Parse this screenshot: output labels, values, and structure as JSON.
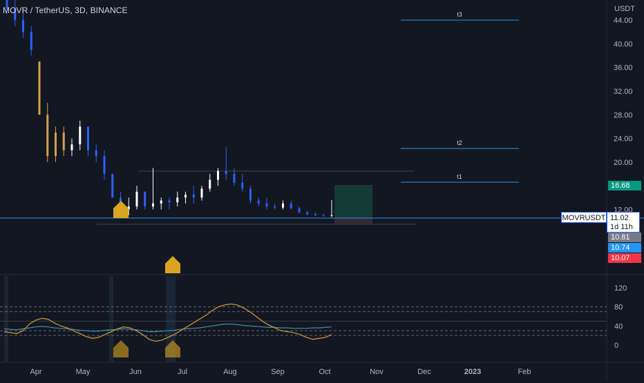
{
  "header": {
    "symbol": "MOVR / TetherUS, 3D, BINANCE"
  },
  "price_axis": {
    "unit": "USDT",
    "ticks": [
      "44.00",
      "40.00",
      "36.00",
      "32.00",
      "28.00",
      "24.00",
      "20.00",
      "12.00"
    ]
  },
  "oscillator_axis": {
    "ticks": [
      "120",
      "80",
      "40",
      "0"
    ]
  },
  "time_axis": {
    "labels": [
      "Apr",
      "May",
      "Jun",
      "Jul",
      "Aug",
      "Sep",
      "Oct",
      "Nov",
      "Dec",
      "2023",
      "Feb"
    ]
  },
  "targets": [
    {
      "label": "t3",
      "price": 44.0
    },
    {
      "label": "t2",
      "price": 22.3
    },
    {
      "label": "t1",
      "price": 16.6
    }
  ],
  "price_tags": [
    {
      "text": "16.68",
      "color": "#089981"
    },
    {
      "text": "10.81",
      "color": "#787b86"
    },
    {
      "text": "10.74",
      "color": "#2196f3"
    },
    {
      "text": "10.07",
      "color": "#f23645"
    }
  ],
  "symbol_tag": "MOVRUSDT",
  "last_price": {
    "price": "11.02",
    "countdown": "1d 11h"
  },
  "colors": {
    "background": "#131722",
    "candle_up": "#ffffff",
    "candle_down": "#2962ff",
    "candle_highlight": "#d4a24a",
    "signal": "#d9a520",
    "horizontal_line": "#2196f3",
    "long_box": "#163f3a"
  },
  "icons": [
    "up-arrow-signal-icon"
  ],
  "chart_data": {
    "type": "candlestick",
    "title": "MOVR / TetherUS, 3D, BINANCE",
    "ylabel": "USDT",
    "ylim": [
      9,
      50
    ],
    "x_labels": [
      "Apr",
      "May",
      "Jun",
      "Jul",
      "Aug",
      "Sep",
      "Oct",
      "Nov",
      "Dec",
      "2023",
      "Feb"
    ],
    "candles": [
      {
        "o": 48,
        "h": 50,
        "l": 45,
        "c": 46,
        "hl": false
      },
      {
        "o": 46,
        "h": 48,
        "l": 43,
        "c": 44,
        "hl": false
      },
      {
        "o": 44,
        "h": 46,
        "l": 41,
        "c": 42,
        "hl": false
      },
      {
        "o": 42,
        "h": 43,
        "l": 38,
        "c": 39,
        "hl": false
      },
      {
        "o": 37,
        "h": 37,
        "l": 28,
        "c": 28,
        "hl": true
      },
      {
        "o": 28,
        "h": 30,
        "l": 20,
        "c": 21,
        "hl": true
      },
      {
        "o": 21,
        "h": 26,
        "l": 20,
        "c": 25,
        "hl": true
      },
      {
        "o": 25,
        "h": 26,
        "l": 21,
        "c": 22,
        "hl": true
      },
      {
        "o": 22,
        "h": 24,
        "l": 21,
        "c": 23,
        "hl": false
      },
      {
        "o": 23,
        "h": 27,
        "l": 22,
        "c": 26,
        "hl": false
      },
      {
        "o": 26,
        "h": 26,
        "l": 21,
        "c": 22,
        "hl": false
      },
      {
        "o": 22,
        "h": 23,
        "l": 20,
        "c": 21,
        "hl": false
      },
      {
        "o": 21,
        "h": 22,
        "l": 17,
        "c": 18,
        "hl": false
      },
      {
        "o": 18,
        "h": 18,
        "l": 14,
        "c": 14,
        "hl": false
      },
      {
        "o": 14,
        "h": 15,
        "l": 11,
        "c": 12,
        "hl": false
      },
      {
        "o": 12,
        "h": 14,
        "l": 11,
        "c": 12.5,
        "hl": false
      },
      {
        "o": 12.5,
        "h": 16,
        "l": 12,
        "c": 15,
        "hl": false
      },
      {
        "o": 15,
        "h": 15,
        "l": 12,
        "c": 12.5,
        "hl": false
      },
      {
        "o": 12.5,
        "h": 19,
        "l": 12,
        "c": 13,
        "hl": false
      },
      {
        "o": 13,
        "h": 14,
        "l": 12,
        "c": 13.5,
        "hl": false
      },
      {
        "o": 13.5,
        "h": 14,
        "l": 12,
        "c": 13.2,
        "hl": false
      },
      {
        "o": 13.2,
        "h": 15,
        "l": 12.5,
        "c": 14,
        "hl": false
      },
      {
        "o": 14,
        "h": 15,
        "l": 13,
        "c": 14.5,
        "hl": false
      },
      {
        "o": 14.5,
        "h": 16,
        "l": 13,
        "c": 14,
        "hl": false
      },
      {
        "o": 14,
        "h": 16,
        "l": 13.5,
        "c": 15.5,
        "hl": false
      },
      {
        "o": 15.5,
        "h": 18,
        "l": 15,
        "c": 17,
        "hl": false
      },
      {
        "o": 17,
        "h": 19,
        "l": 16,
        "c": 18.5,
        "hl": false
      },
      {
        "o": 18.5,
        "h": 22.5,
        "l": 17,
        "c": 18,
        "hl": false
      },
      {
        "o": 18,
        "h": 19,
        "l": 16,
        "c": 16.5,
        "hl": false
      },
      {
        "o": 16.5,
        "h": 18,
        "l": 15,
        "c": 15.5,
        "hl": false
      },
      {
        "o": 15.5,
        "h": 16,
        "l": 13,
        "c": 13.5,
        "hl": false
      },
      {
        "o": 13.5,
        "h": 14,
        "l": 12.5,
        "c": 13,
        "hl": false
      },
      {
        "o": 13,
        "h": 14,
        "l": 12,
        "c": 12.5,
        "hl": false
      },
      {
        "o": 12.5,
        "h": 13,
        "l": 12,
        "c": 12.3,
        "hl": false
      },
      {
        "o": 12.3,
        "h": 13.5,
        "l": 12,
        "c": 13,
        "hl": false
      },
      {
        "o": 13,
        "h": 13.5,
        "l": 12,
        "c": 12.2,
        "hl": false
      },
      {
        "o": 12.2,
        "h": 12.5,
        "l": 11.3,
        "c": 11.5,
        "hl": false
      },
      {
        "o": 11.5,
        "h": 11.8,
        "l": 11.0,
        "c": 11.2,
        "hl": false
      },
      {
        "o": 11.2,
        "h": 11.5,
        "l": 10.9,
        "c": 11.0,
        "hl": false
      },
      {
        "o": 11.0,
        "h": 11.3,
        "l": 10.8,
        "c": 10.9,
        "hl": false
      },
      {
        "o": 10.9,
        "h": 13.6,
        "l": 10.7,
        "c": 11.02,
        "hl": false
      }
    ],
    "oscillator": {
      "ylim": [
        -10,
        130
      ],
      "ticks": [
        120,
        80,
        40,
        0
      ],
      "orange": [
        28,
        26,
        24,
        30,
        44,
        52,
        56,
        54,
        46,
        40,
        36,
        30,
        24,
        18,
        14,
        16,
        22,
        28,
        34,
        38,
        36,
        30,
        22,
        12,
        8,
        10,
        16,
        22,
        30,
        38,
        46,
        54,
        62,
        72,
        80,
        84,
        86,
        84,
        78,
        70,
        60,
        50,
        42,
        36,
        30,
        28,
        26,
        22,
        16,
        12,
        14,
        16,
        22
      ],
      "blue": [
        34,
        33,
        32,
        34,
        36,
        38,
        39,
        38,
        36,
        35,
        34,
        33,
        31,
        30,
        29,
        29,
        31,
        32,
        33,
        34,
        33,
        32,
        30,
        28,
        28,
        29,
        30,
        31,
        33,
        34,
        35,
        36,
        38,
        40,
        42,
        44,
        44,
        43,
        41,
        40,
        39,
        38,
        37,
        37,
        36,
        36,
        35,
        35,
        35,
        36,
        36,
        37,
        38
      ]
    }
  }
}
